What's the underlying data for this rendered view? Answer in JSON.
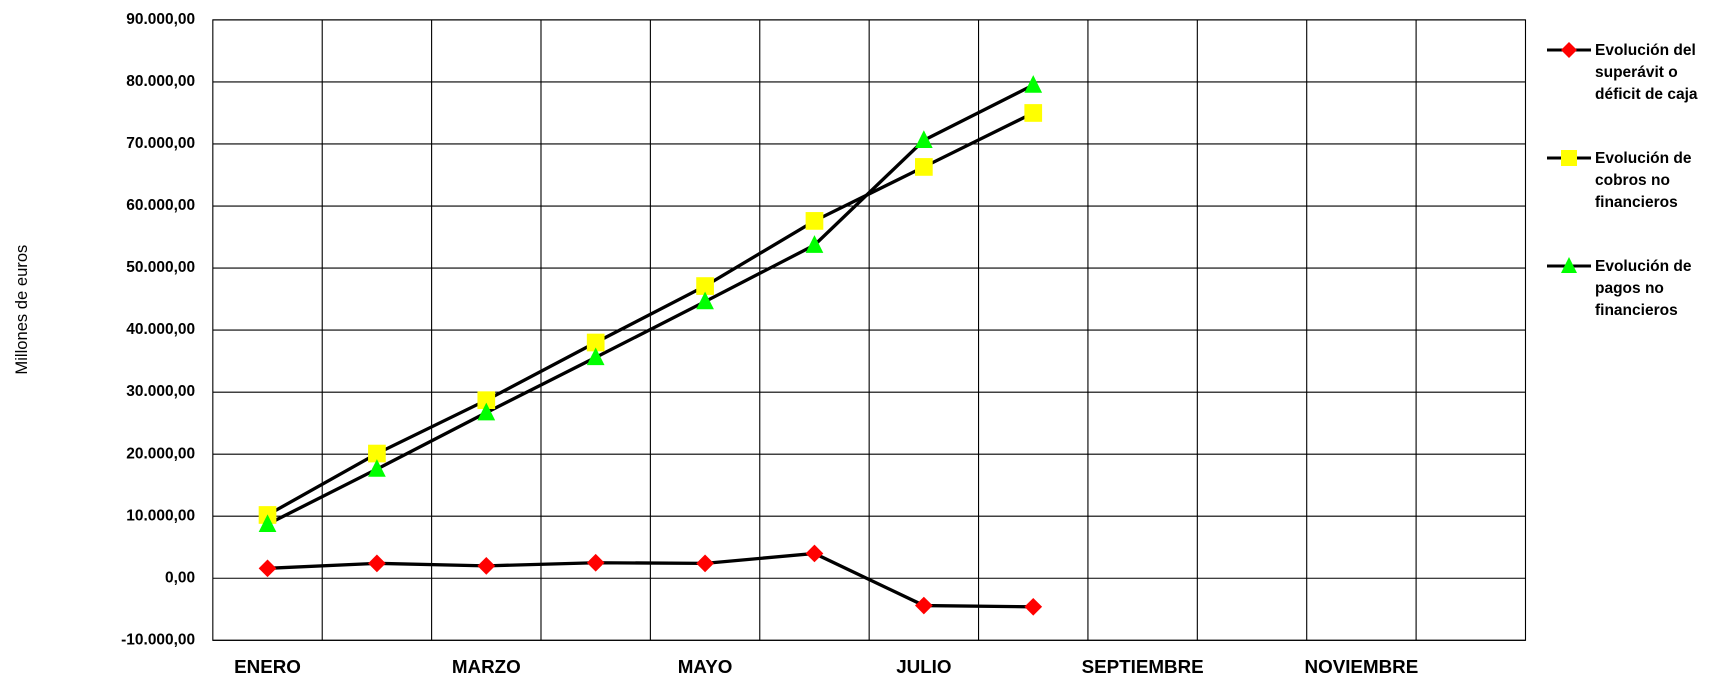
{
  "chart_data": {
    "type": "line",
    "y_label": "Millones de euros",
    "categories": [
      "ENERO",
      null,
      "MARZO",
      null,
      "MAYO",
      null,
      "JULIO",
      null,
      "SEPTIEMBRE",
      null,
      "NOVIEMBRE",
      null
    ],
    "series": [
      {
        "name": "Evolución del superávit o déficit de caja",
        "color": "#ff0000",
        "line_color": "#000000",
        "marker": "diamond",
        "values": [
          1600,
          2400,
          2000,
          2500,
          2400,
          4000,
          -4400,
          -4600,
          null,
          null,
          null,
          null
        ]
      },
      {
        "name": "Evolución de cobros no financieros",
        "color": "#ffff00",
        "line_color": "#000000",
        "marker": "square",
        "values": [
          10200,
          20100,
          28700,
          38000,
          47100,
          57600,
          66300,
          75000,
          null,
          null,
          null,
          null
        ]
      },
      {
        "name": "Evolución de pagos no financieros",
        "color": "#00ff00",
        "line_color": "#000000",
        "marker": "triangle",
        "values": [
          8700,
          17600,
          26700,
          35600,
          44600,
          53700,
          70600,
          79500,
          null,
          null,
          null,
          null
        ]
      }
    ],
    "ylim": [
      -10000,
      90000
    ],
    "yticks": [
      {
        "value": -10000,
        "label": "-10.000,00"
      },
      {
        "value": 0,
        "label": "0,00"
      },
      {
        "value": 10000,
        "label": "10.000,00"
      },
      {
        "value": 20000,
        "label": "20.000,00"
      },
      {
        "value": 30000,
        "label": "30.000,00"
      },
      {
        "value": 40000,
        "label": "40.000,00"
      },
      {
        "value": 50000,
        "label": "50.000,00"
      },
      {
        "value": 60000,
        "label": "60.000,00"
      },
      {
        "value": 70000,
        "label": "70.000,00"
      },
      {
        "value": 80000,
        "label": "80.000,00"
      },
      {
        "value": 90000,
        "label": "90.000,00"
      }
    ],
    "grid": true,
    "legend": "right"
  }
}
